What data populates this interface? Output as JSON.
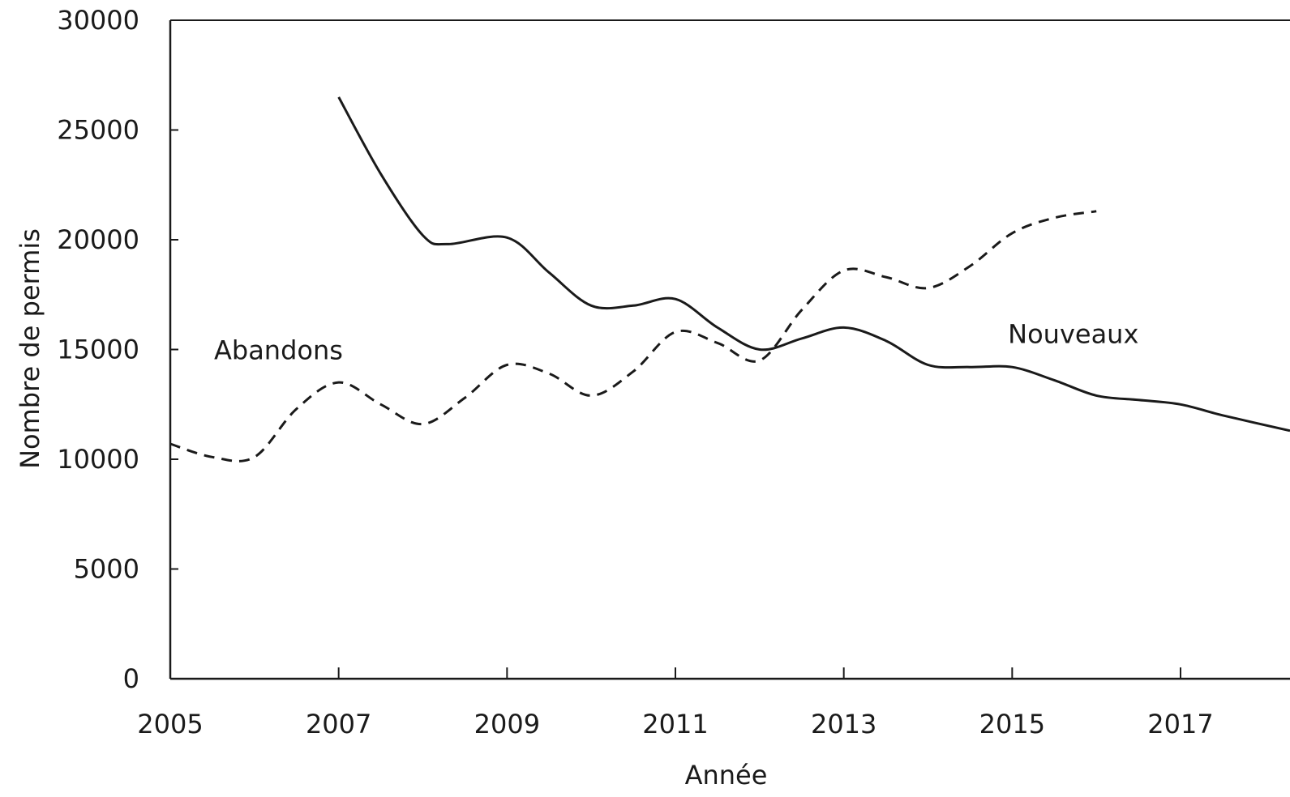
{
  "chart_data": {
    "type": "line",
    "xlabel": "Année",
    "ylabel": "Nombre de permis",
    "xlim": [
      2005,
      2018.3
    ],
    "ylim": [
      0,
      30000
    ],
    "x_ticks": [
      "2005",
      "2007",
      "2009",
      "2011",
      "2013",
      "2015",
      "2017"
    ],
    "y_ticks": [
      "0",
      "5000",
      "10000",
      "15000",
      "20000",
      "25000",
      "30000"
    ],
    "grid": false,
    "legend": "none",
    "series": [
      {
        "name": "Nouveaux",
        "line_style": "solid",
        "color": "#1a1a1a",
        "x": [
          2007,
          2007.5,
          2008,
          2008.3,
          2009,
          2009.5,
          2010,
          2010.5,
          2011,
          2011.5,
          2012,
          2012.5,
          2013,
          2013.5,
          2014,
          2014.5,
          2015,
          2015.5,
          2016,
          2016.5,
          2017,
          2017.5,
          2018.3
        ],
        "y": [
          26500,
          23000,
          20200,
          19800,
          20100,
          18500,
          17000,
          17000,
          17300,
          16000,
          15000,
          15500,
          16000,
          15400,
          14300,
          14200,
          14200,
          13600,
          12900,
          12700,
          12500,
          12000,
          11300
        ]
      },
      {
        "name": "Abandons",
        "line_style": "dashed",
        "color": "#1a1a1a",
        "x": [
          2005,
          2005.5,
          2006,
          2006.5,
          2007,
          2007.5,
          2008,
          2008.5,
          2009,
          2009.5,
          2010,
          2010.5,
          2011,
          2011.5,
          2012,
          2012.5,
          2013,
          2013.5,
          2014,
          2014.5,
          2015,
          2015.5,
          2016
        ],
        "y": [
          10700,
          10100,
          10100,
          12300,
          13500,
          12500,
          11600,
          12800,
          14300,
          13900,
          12900,
          14000,
          15800,
          15300,
          14500,
          16800,
          18600,
          18300,
          17800,
          18800,
          20300,
          21000,
          21300
        ]
      }
    ]
  }
}
